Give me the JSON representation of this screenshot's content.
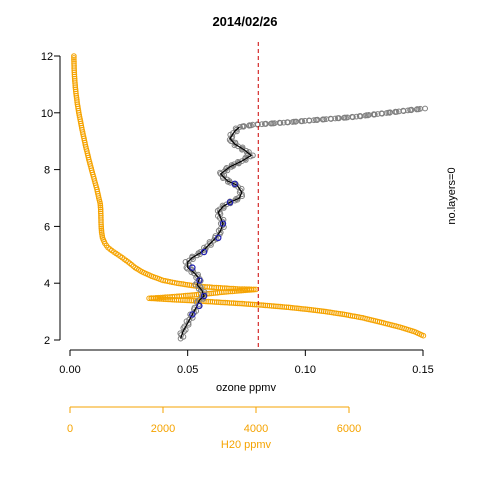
{
  "colors": {
    "h2o": "#f5a300",
    "ozone_points": "#808080",
    "ozone_line": "#000000",
    "markers": "#1f1fb4",
    "reference_line": "#cc0000"
  },
  "chart_data": {
    "type": "scatter",
    "title": "2014/02/26",
    "xlabel": "ozone ppmv",
    "secondary_xlabel": "H20 ppmv",
    "side_label": "no.layers=0",
    "xlim": [
      0,
      0.15
    ],
    "ylim": [
      2,
      12
    ],
    "x_ticks": [
      "0.00",
      "0.05",
      "0.10",
      "0.15"
    ],
    "y_ticks": [
      "2",
      "4",
      "6",
      "8",
      "10",
      "12"
    ],
    "secondary_xlim": [
      0,
      6000
    ],
    "secondary_ticks": [
      "0",
      "2000",
      "4000",
      "6000"
    ],
    "reference_x": 0.08,
    "series": [
      {
        "kind": "h2o",
        "points": [
          [
            83,
            12.0
          ],
          [
            85,
            11.8
          ],
          [
            90,
            11.5
          ],
          [
            100,
            11.2
          ],
          [
            115,
            10.9
          ],
          [
            135,
            10.6
          ],
          [
            160,
            10.3
          ],
          [
            190,
            10.0
          ],
          [
            225,
            9.7
          ],
          [
            260,
            9.4
          ],
          [
            300,
            9.1
          ],
          [
            340,
            8.8
          ],
          [
            385,
            8.5
          ],
          [
            430,
            8.2
          ],
          [
            480,
            7.9
          ],
          [
            530,
            7.6
          ],
          [
            580,
            7.3
          ],
          [
            620,
            7.0
          ],
          [
            650,
            6.8
          ],
          [
            660,
            6.6
          ],
          [
            665,
            6.3
          ],
          [
            670,
            6.0
          ],
          [
            680,
            5.8
          ],
          [
            700,
            5.6
          ],
          [
            750,
            5.4
          ],
          [
            820,
            5.25
          ],
          [
            900,
            5.15
          ],
          [
            990,
            5.05
          ],
          [
            1080,
            4.95
          ],
          [
            1250,
            4.75
          ],
          [
            1400,
            4.55
          ],
          [
            1550,
            4.4
          ],
          [
            1750,
            4.25
          ],
          [
            2000,
            4.1
          ],
          [
            2300,
            4.0
          ],
          [
            2700,
            3.9
          ],
          [
            3100,
            3.85
          ],
          [
            3600,
            3.8
          ],
          [
            4000,
            3.78
          ],
          [
            3400,
            3.7
          ],
          [
            2900,
            3.62
          ],
          [
            2400,
            3.55
          ],
          [
            2000,
            3.5
          ],
          [
            1700,
            3.47
          ],
          [
            2200,
            3.42
          ],
          [
            2700,
            3.38
          ],
          [
            3200,
            3.33
          ],
          [
            3700,
            3.28
          ],
          [
            4200,
            3.22
          ],
          [
            4700,
            3.15
          ],
          [
            5100,
            3.08
          ],
          [
            5500,
            3.0
          ],
          [
            5900,
            2.9
          ],
          [
            6300,
            2.78
          ],
          [
            6700,
            2.62
          ],
          [
            7100,
            2.45
          ],
          [
            7400,
            2.3
          ],
          [
            7600,
            2.15
          ],
          [
            7720,
            2.05
          ]
        ]
      },
      {
        "kind": "ozone",
        "points": [
          [
            0.047,
            2.05
          ],
          [
            0.048,
            2.3
          ],
          [
            0.05,
            2.6
          ],
          [
            0.052,
            2.9
          ],
          [
            0.054,
            3.2
          ],
          [
            0.055,
            3.4
          ],
          [
            0.057,
            3.55
          ],
          [
            0.056,
            3.75
          ],
          [
            0.054,
            3.95
          ],
          [
            0.055,
            4.15
          ],
          [
            0.053,
            4.35
          ],
          [
            0.05,
            4.55
          ],
          [
            0.05,
            4.75
          ],
          [
            0.052,
            4.9
          ],
          [
            0.056,
            5.1
          ],
          [
            0.059,
            5.35
          ],
          [
            0.062,
            5.6
          ],
          [
            0.064,
            5.85
          ],
          [
            0.065,
            6.1
          ],
          [
            0.064,
            6.3
          ],
          [
            0.063,
            6.5
          ],
          [
            0.065,
            6.7
          ],
          [
            0.068,
            6.85
          ],
          [
            0.072,
            7.0
          ],
          [
            0.073,
            7.2
          ],
          [
            0.071,
            7.45
          ],
          [
            0.067,
            7.6
          ],
          [
            0.064,
            7.85
          ],
          [
            0.068,
            8.1
          ],
          [
            0.073,
            8.3
          ],
          [
            0.077,
            8.5
          ],
          [
            0.074,
            8.7
          ],
          [
            0.07,
            8.9
          ],
          [
            0.068,
            9.1
          ],
          [
            0.07,
            9.35
          ],
          [
            0.072,
            9.5
          ],
          [
            0.078,
            9.58
          ],
          [
            0.09,
            9.65
          ],
          [
            0.105,
            9.75
          ],
          [
            0.12,
            9.85
          ],
          [
            0.13,
            9.95
          ],
          [
            0.14,
            10.05
          ],
          [
            0.15,
            10.15
          ]
        ],
        "markers": [
          [
            0.052,
            2.9
          ],
          [
            0.055,
            3.2
          ],
          [
            0.057,
            3.55
          ],
          [
            0.055,
            4.1
          ],
          [
            0.052,
            4.55
          ],
          [
            0.057,
            5.1
          ],
          [
            0.063,
            5.6
          ],
          [
            0.065,
            6.1
          ],
          [
            0.068,
            6.85
          ],
          [
            0.07,
            7.5
          ]
        ]
      }
    ]
  }
}
